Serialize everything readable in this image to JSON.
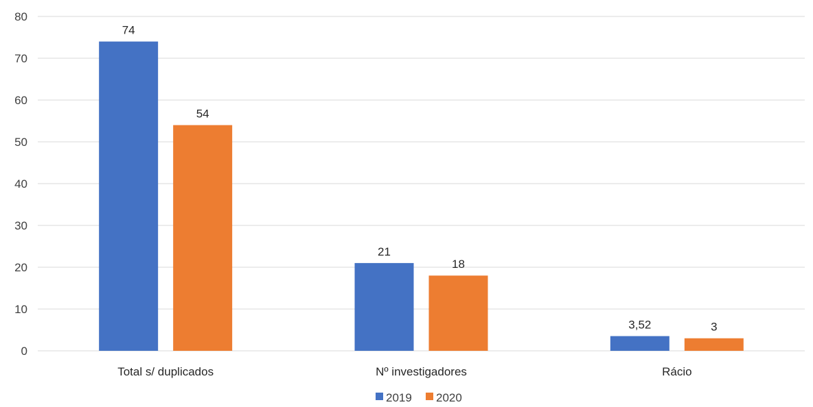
{
  "chart_data": {
    "type": "bar",
    "categories": [
      "Total s/ duplicados",
      "Nº investigadores",
      "Rácio"
    ],
    "series": [
      {
        "name": "2019",
        "values": [
          74,
          21,
          3.52
        ],
        "labels": [
          "74",
          "21",
          "3,52"
        ],
        "color": "#4472C4"
      },
      {
        "name": "2020",
        "values": [
          54,
          18,
          3
        ],
        "labels": [
          "54",
          "18",
          "3"
        ],
        "color": "#ED7D31"
      }
    ],
    "yticks": [
      "0",
      "10",
      "20",
      "30",
      "40",
      "50",
      "60",
      "70",
      "80"
    ],
    "ylim": [
      0,
      80
    ],
    "grid": true,
    "legend": "bottom",
    "gridline_color": "#D9D9D9",
    "axis_text_color": "#404040"
  }
}
